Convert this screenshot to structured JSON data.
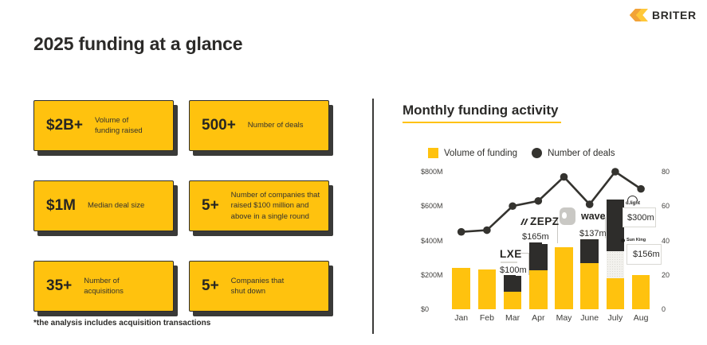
{
  "brand": {
    "name": "BRITER"
  },
  "page_title": "2025 funding at a glance",
  "footnote": "*the analysis includes acquisition transactions",
  "stat_cards": [
    {
      "value": "$2B+",
      "label": "Volume of\nfunding raised"
    },
    {
      "value": "500+",
      "label": "Number of deals"
    },
    {
      "value": "$1M",
      "label": "Median deal size"
    },
    {
      "value": "5+",
      "label": "Number of companies that\nraised $100 million and\nabove in a single round"
    },
    {
      "value": "35+",
      "label": "Number of\nacquisitions"
    },
    {
      "value": "5+",
      "label": "Companies that\nshut down"
    }
  ],
  "chart": {
    "title": "Monthly funding activity",
    "legend": [
      {
        "label": "Volume of funding",
        "marker": "square",
        "color": "#FFC20E"
      },
      {
        "label": "Number of deals",
        "marker": "circle",
        "color": "#34332F"
      }
    ]
  },
  "chart_data": {
    "type": "bar",
    "subtype": "stacked bars with line overlay",
    "title": "Monthly funding activity",
    "categories": [
      "Jan",
      "Feb",
      "Mar",
      "Apr",
      "May",
      "June",
      "July",
      "Aug"
    ],
    "bar_unit": "USD millions",
    "bars": [
      {
        "month": "Jan",
        "segments": [
          {
            "name": "volume",
            "value": 240,
            "style": "volume"
          }
        ]
      },
      {
        "month": "Feb",
        "segments": [
          {
            "name": "volume",
            "value": 230,
            "style": "volume"
          }
        ]
      },
      {
        "month": "Mar",
        "segments": [
          {
            "name": "volume",
            "value": 100,
            "style": "volume"
          },
          {
            "name": "LXE",
            "value": 100,
            "style": "highlight-dark"
          }
        ]
      },
      {
        "month": "Apr",
        "segments": [
          {
            "name": "volume",
            "value": 225,
            "style": "volume"
          },
          {
            "name": "ZEPZ",
            "value": 165,
            "style": "highlight-dark"
          }
        ]
      },
      {
        "month": "May",
        "segments": [
          {
            "name": "volume",
            "value": 360,
            "style": "volume"
          }
        ]
      },
      {
        "month": "June",
        "segments": [
          {
            "name": "volume",
            "value": 270,
            "style": "volume"
          },
          {
            "name": "wave",
            "value": 137,
            "style": "highlight-dark"
          }
        ]
      },
      {
        "month": "July",
        "segments": [
          {
            "name": "volume",
            "value": 180,
            "style": "volume"
          },
          {
            "name": "Sun King",
            "value": 156,
            "style": "highlight-light"
          },
          {
            "name": "d.light",
            "value": 300,
            "style": "highlight-dark"
          }
        ]
      },
      {
        "month": "Aug",
        "segments": [
          {
            "name": "volume",
            "value": 200,
            "style": "volume"
          }
        ]
      }
    ],
    "line": {
      "name": "Number of deals",
      "values": [
        45,
        46,
        60,
        63,
        77,
        61,
        80,
        70
      ]
    },
    "y_left": {
      "label": "Volume of funding",
      "max": 800,
      "ticks": [
        {
          "label": "$0",
          "value": 0
        },
        {
          "label": "$200M",
          "value": 200
        },
        {
          "label": "$400M",
          "value": 400
        },
        {
          "label": "$600M",
          "value": 600
        },
        {
          "label": "$800M",
          "value": 800
        }
      ]
    },
    "y_right": {
      "label": "Number of deals",
      "max": 80,
      "ticks": [
        {
          "label": "0",
          "value": 0
        },
        {
          "label": "20",
          "value": 20
        },
        {
          "label": "40",
          "value": 40
        },
        {
          "label": "60",
          "value": 60
        },
        {
          "label": "80",
          "value": 80
        }
      ]
    },
    "grid": false,
    "legend_position": "top",
    "annotations": [
      {
        "company": "LXE",
        "amount": "$100m",
        "month": "Mar"
      },
      {
        "company": "ZEPZ",
        "amount": "$165m",
        "month": "Apr"
      },
      {
        "company": "wave",
        "amount": "$137m",
        "month": "June"
      },
      {
        "company": "d.light",
        "amount": "$300m",
        "month": "July"
      },
      {
        "company": "Sun King",
        "amount": "$156m",
        "month": "July"
      }
    ]
  },
  "colors": {
    "accent_yellow": "#FFC20E",
    "dark": "#2E2D2B",
    "light_segment": "#F2F1ED",
    "card_shadow": "#3A3A38",
    "line": "#34332F"
  }
}
